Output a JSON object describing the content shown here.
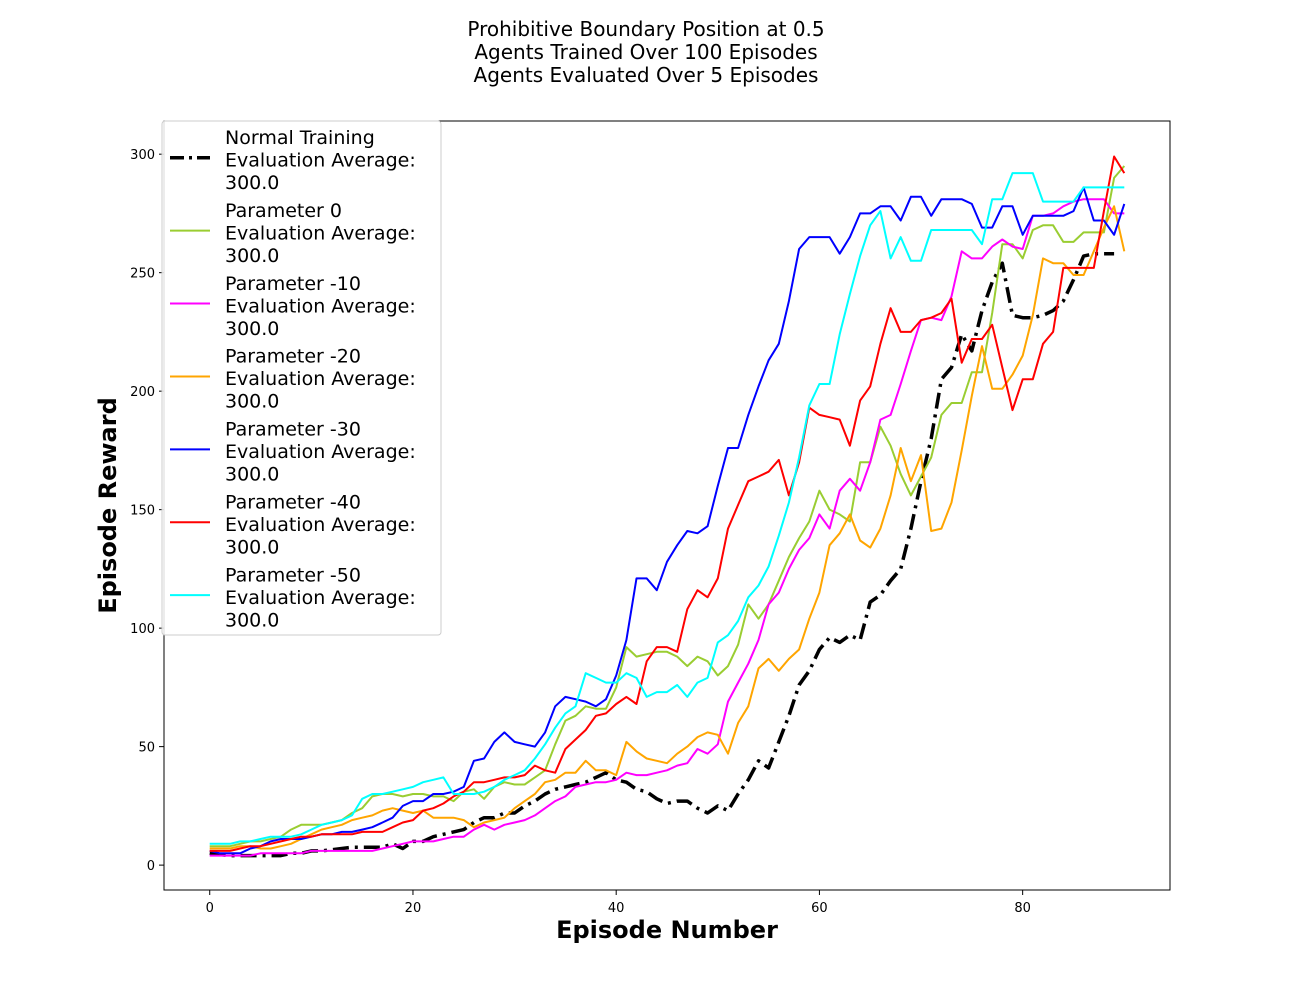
{
  "chart_data": {
    "type": "line",
    "title": [
      "Prohibitive Boundary Position at 0.5",
      "Agents Trained Over 100 Episodes",
      "Agents Evaluated Over 5 Episodes"
    ],
    "xlabel": "Episode Number",
    "ylabel": "Episode Reward",
    "xlim": [
      -4.5,
      94.5
    ],
    "ylim": [
      -10.5,
      314
    ],
    "xticks": [
      0,
      20,
      40,
      60,
      80
    ],
    "yticks": [
      0,
      50,
      100,
      150,
      200,
      250,
      300
    ],
    "grid": false,
    "legend_position": "upper-left",
    "series": [
      {
        "name": [
          "Normal Training",
          " Evaluation Average:",
          " 300.0"
        ],
        "color": "#000000",
        "dash": "dashdot",
        "values": [
          5,
          4.5,
          4,
          4,
          4,
          4,
          4,
          4,
          5,
          5,
          6,
          6,
          6.5,
          7,
          7.5,
          7.5,
          7.5,
          7.5,
          9,
          7,
          10,
          10,
          12,
          13,
          14,
          15,
          18,
          20,
          20,
          22,
          22,
          25,
          27,
          30,
          32,
          33,
          34,
          35,
          37,
          39,
          36,
          35,
          32,
          31,
          28,
          26,
          27,
          27,
          24,
          22,
          25,
          23,
          30,
          36,
          44,
          41,
          52,
          63,
          76,
          82,
          91,
          96,
          94,
          97,
          95,
          111,
          114,
          120,
          125,
          142,
          162,
          180,
          205,
          210,
          224,
          217,
          234,
          246,
          254,
          232,
          231,
          231,
          232,
          234,
          238,
          247,
          257,
          258,
          258,
          258
        ]
      },
      {
        "name": [
          "Parameter 0",
          " Evaluation Average:",
          " 300.0"
        ],
        "color": "#9acd32",
        "dash": "solid",
        "values": [
          8,
          8,
          8,
          9,
          10,
          10,
          11,
          12,
          15,
          17,
          17,
          17,
          18,
          19,
          22,
          24,
          29,
          30,
          30,
          29,
          30,
          30,
          29,
          29,
          27,
          31,
          32,
          28,
          33,
          35,
          34,
          34,
          37,
          40,
          51,
          61,
          63,
          67,
          66,
          66,
          75,
          92,
          88,
          89,
          90,
          90,
          88,
          84,
          88,
          86,
          80,
          84,
          93,
          110,
          104,
          110,
          120,
          130,
          138,
          145,
          158,
          150,
          148,
          145,
          170,
          170,
          185,
          177,
          165,
          156,
          164,
          172,
          190,
          195,
          195,
          208,
          208,
          233,
          262,
          262,
          256,
          268,
          270,
          270,
          263,
          263,
          267,
          267,
          267,
          290,
          295
        ]
      },
      {
        "name": [
          "Parameter -10",
          " Evaluation Average:",
          " 300.0"
        ],
        "color": "#ff00ff",
        "dash": "solid",
        "values": [
          4,
          4,
          4,
          4,
          4,
          5,
          5,
          5,
          5,
          5,
          6,
          6,
          6,
          6,
          6,
          6,
          6,
          7,
          8,
          9,
          10,
          10,
          10,
          11,
          12,
          12,
          15,
          17,
          15,
          17,
          18,
          19,
          21,
          24,
          27,
          29,
          33,
          34,
          35,
          35,
          36,
          39,
          38,
          38,
          39,
          40,
          42,
          43,
          49,
          47,
          51,
          69,
          77,
          85,
          95,
          110,
          115,
          125,
          133,
          138,
          148,
          142,
          158,
          163,
          158,
          170,
          188,
          190,
          203,
          217,
          230,
          231,
          230,
          240,
          259,
          256,
          256,
          261,
          264,
          261,
          260,
          274,
          274,
          275,
          278,
          280,
          281,
          281,
          281,
          275,
          275
        ]
      },
      {
        "name": [
          "Parameter -20",
          " Evaluation Average:",
          " 300.0"
        ],
        "color": "#ffa500",
        "dash": "solid",
        "values": [
          7,
          7,
          7,
          8,
          8,
          7,
          7,
          8,
          9,
          11,
          13,
          15,
          16,
          17,
          19,
          20,
          21,
          23,
          24,
          23,
          22,
          23,
          20,
          20,
          20,
          19,
          16,
          18,
          19,
          20,
          24,
          27,
          30,
          35,
          36,
          39,
          39,
          44,
          40,
          40,
          38,
          52,
          48,
          45,
          44,
          43,
          47,
          50,
          54,
          56,
          55,
          47,
          60,
          67,
          83,
          87,
          82,
          87,
          91,
          104,
          115,
          135,
          140,
          148,
          137,
          134,
          142,
          156,
          176,
          162,
          173,
          141,
          142,
          153,
          175,
          198,
          219,
          201,
          201,
          207,
          215,
          232,
          256,
          254,
          254,
          249,
          249,
          259,
          269,
          278,
          259
        ]
      },
      {
        "name": [
          "Parameter -30",
          " Evaluation Average:",
          " 300.0"
        ],
        "color": "#0000ff",
        "dash": "solid",
        "values": [
          6,
          5,
          5,
          5,
          7,
          8,
          10,
          11,
          11,
          11,
          12,
          13,
          13,
          14,
          14,
          15,
          16,
          18,
          20,
          25,
          27,
          27,
          30,
          30,
          31,
          33,
          44,
          45,
          52,
          56,
          52,
          51,
          50,
          56,
          67,
          71,
          70,
          69,
          67,
          70,
          80,
          95,
          121,
          121,
          116,
          128,
          135,
          141,
          140,
          143,
          160,
          176,
          176,
          190,
          202,
          213,
          220,
          238,
          260,
          265,
          265,
          265,
          258,
          265,
          275,
          275,
          278,
          278,
          272,
          282,
          282,
          274,
          281,
          281,
          281,
          279,
          269,
          269,
          278,
          278,
          266,
          274,
          274,
          274,
          274,
          276,
          286,
          272,
          272,
          266,
          279
        ]
      },
      {
        "name": [
          "Parameter -40",
          " Evaluation Average:",
          " 300.0"
        ],
        "color": "#ff0000",
        "dash": "solid",
        "values": [
          6,
          6,
          6,
          7,
          8,
          8,
          9,
          10,
          11,
          12,
          12,
          13,
          13,
          13,
          13,
          14,
          14,
          14,
          16,
          18,
          19,
          23,
          24,
          26,
          29,
          31,
          35,
          35,
          36,
          37,
          37,
          38,
          42,
          40,
          39,
          49,
          53,
          57,
          63,
          64,
          68,
          71,
          68,
          86,
          92,
          92,
          90,
          108,
          116,
          113,
          121,
          142,
          152,
          162,
          164,
          166,
          171,
          156,
          170,
          193,
          190,
          189,
          188,
          177,
          196,
          202,
          220,
          235,
          225,
          225,
          230,
          231,
          233,
          239,
          212,
          222,
          222,
          228,
          210,
          192,
          205,
          205,
          220,
          225,
          252,
          252,
          252,
          252,
          276,
          299,
          292
        ]
      },
      {
        "name": [
          "Parameter -50",
          " Evaluation Average:",
          " 300.0"
        ],
        "color": "#00ffff",
        "dash": "solid",
        "values": [
          9,
          9,
          9,
          10,
          10,
          11,
          12,
          12,
          12,
          13,
          15,
          17,
          18,
          19,
          21,
          28,
          30,
          30,
          31,
          32,
          33,
          35,
          36,
          37,
          30,
          30,
          30,
          31,
          33,
          36,
          38,
          40,
          45,
          51,
          58,
          64,
          67,
          81,
          79,
          77,
          77,
          81,
          79,
          71,
          73,
          73,
          76,
          71,
          77,
          79,
          94,
          97,
          103,
          113,
          118,
          126,
          139,
          153,
          172,
          194,
          203,
          203,
          224,
          241,
          257,
          270,
          276,
          256,
          265,
          255,
          255,
          268,
          268,
          268,
          268,
          268,
          262,
          281,
          281,
          292,
          292,
          292,
          280,
          280,
          280,
          280,
          286,
          286,
          286,
          286,
          286
        ]
      }
    ]
  }
}
